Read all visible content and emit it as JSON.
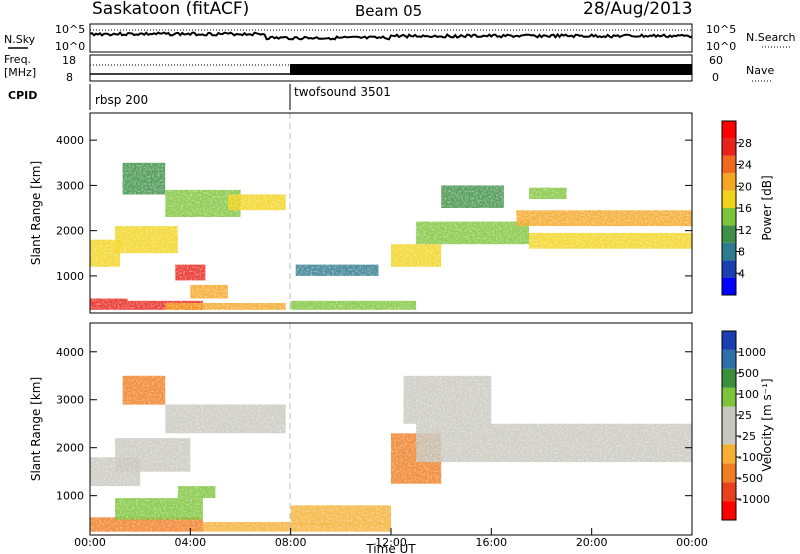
{
  "header": {
    "station": "Saskatoon (fitACF)",
    "beam": "Beam 05",
    "date": "28/Aug/2013"
  },
  "panels": {
    "nsky": {
      "label": "N.Sky",
      "right_label": "N.Search",
      "ticks": [
        "10^5",
        "10^0"
      ]
    },
    "freq": {
      "label_line1": "Freq.",
      "label_line2": "[MHz]",
      "left_ticks": [
        "18",
        "8"
      ],
      "right_label": "Nave",
      "right_ticks": [
        "60",
        "0"
      ]
    },
    "cpid": {
      "label": "CPID",
      "entries": [
        "rbsp 200",
        "twofsound 3501"
      ]
    }
  },
  "colors": {
    "power": [
      "#0000ff",
      "#1a3fb0",
      "#2e7a8e",
      "#3d8f47",
      "#7ec43a",
      "#f2d31c",
      "#f5a623",
      "#f06a1e",
      "#e8231b",
      "#ff0000"
    ],
    "velocity": [
      "#ff0000",
      "#e8401e",
      "#f07d22",
      "#f5b034",
      "#c8c8c0",
      "#c8c8c0",
      "#7dc43a",
      "#3a8f3a",
      "#2e6fa8",
      "#1a3fb0"
    ]
  },
  "chart_data": [
    {
      "type": "heatmap",
      "title": "Power",
      "xlabel": "",
      "ylabel": "Slant Range [km]",
      "colorbar_label": "Power [dB]",
      "colorbar_ticks": [
        "4",
        "8",
        "12",
        "16",
        "20",
        "24",
        "28"
      ],
      "xlim": [
        0,
        24
      ],
      "ylim": [
        180,
        4600
      ],
      "yticks": [
        "1000",
        "2000",
        "3000",
        "4000"
      ],
      "regions": [
        {
          "x": [
            0,
            1.5
          ],
          "y": [
            250,
            500
          ],
          "power": 28
        },
        {
          "x": [
            1.5,
            4.5
          ],
          "y": [
            250,
            450
          ],
          "power": 26
        },
        {
          "x": [
            3.0,
            7.8
          ],
          "y": [
            250,
            400
          ],
          "power": 20
        },
        {
          "x": [
            8.0,
            13.0
          ],
          "y": [
            250,
            450
          ],
          "power": 14
        },
        {
          "x": [
            3.4,
            4.6
          ],
          "y": [
            900,
            1250
          ],
          "power": 26
        },
        {
          "x": [
            4.0,
            5.5
          ],
          "y": [
            500,
            800
          ],
          "power": 20
        },
        {
          "x": [
            0,
            1.2
          ],
          "y": [
            1200,
            1800
          ],
          "power": 16
        },
        {
          "x": [
            1.0,
            3.5
          ],
          "y": [
            1500,
            2100
          ],
          "power": 18
        },
        {
          "x": [
            3.0,
            6.0
          ],
          "y": [
            2300,
            2900
          ],
          "power": 14
        },
        {
          "x": [
            5.5,
            7.8
          ],
          "y": [
            2450,
            2800
          ],
          "power": 16
        },
        {
          "x": [
            1.3,
            3.0
          ],
          "y": [
            2800,
            3500
          ],
          "power": 10
        },
        {
          "x": [
            12.0,
            14.0
          ],
          "y": [
            1200,
            1700
          ],
          "power": 18
        },
        {
          "x": [
            13.0,
            17.5
          ],
          "y": [
            1700,
            2200
          ],
          "power": 12
        },
        {
          "x": [
            14.0,
            16.5
          ],
          "y": [
            2500,
            3000
          ],
          "power": 10
        },
        {
          "x": [
            17.0,
            24.0
          ],
          "y": [
            2100,
            2450
          ],
          "power": 20
        },
        {
          "x": [
            17.5,
            24.0
          ],
          "y": [
            1600,
            1950
          ],
          "power": 18
        },
        {
          "x": [
            17.5,
            19.0
          ],
          "y": [
            2700,
            2950
          ],
          "power": 14
        },
        {
          "x": [
            8.2,
            11.5
          ],
          "y": [
            1000,
            1250
          ],
          "power": 6
        }
      ]
    },
    {
      "type": "heatmap",
      "title": "Velocity",
      "xlabel": "Time UT",
      "ylabel": "Slant Range [km]",
      "colorbar_label": "Velocity [m s⁻¹]",
      "colorbar_ticks": [
        "-1000",
        "-500",
        "-100",
        "-25",
        "25",
        "100",
        "500",
        "1000"
      ],
      "xlim": [
        0,
        24
      ],
      "ylim": [
        180,
        4600
      ],
      "xticks": [
        "00:00",
        "04:00",
        "08:00",
        "12:00",
        "16:00",
        "20:00",
        "00:00"
      ],
      "yticks": [
        "1000",
        "2000",
        "3000",
        "4000"
      ],
      "regions": [
        {
          "x": [
            0,
            4.5
          ],
          "y": [
            250,
            550
          ],
          "velocity": -150
        },
        {
          "x": [
            4.5,
            8.0
          ],
          "y": [
            250,
            450
          ],
          "velocity": -100
        },
        {
          "x": [
            8.0,
            12.0
          ],
          "y": [
            250,
            420
          ],
          "velocity": -80
        },
        {
          "x": [
            1.0,
            4.5
          ],
          "y": [
            500,
            950
          ],
          "velocity": 120
        },
        {
          "x": [
            3.5,
            5.0
          ],
          "y": [
            950,
            1200
          ],
          "velocity": 150
        },
        {
          "x": [
            0,
            2.0
          ],
          "y": [
            1200,
            1800
          ],
          "velocity": 0
        },
        {
          "x": [
            1.0,
            4.0
          ],
          "y": [
            1500,
            2200
          ],
          "velocity": 0
        },
        {
          "x": [
            3.0,
            7.8
          ],
          "y": [
            2300,
            2900
          ],
          "velocity": 0
        },
        {
          "x": [
            1.3,
            3.0
          ],
          "y": [
            2900,
            3500
          ],
          "velocity": -120
        },
        {
          "x": [
            12.0,
            14.0
          ],
          "y": [
            1250,
            2300
          ],
          "velocity": -400
        },
        {
          "x": [
            13.0,
            24.0
          ],
          "y": [
            1700,
            2500
          ],
          "velocity": 10
        },
        {
          "x": [
            12.5,
            16.0
          ],
          "y": [
            2500,
            3500
          ],
          "velocity": 30
        },
        {
          "x": [
            8.0,
            12.0
          ],
          "y": [
            400,
            800
          ],
          "velocity": -60
        }
      ]
    }
  ]
}
